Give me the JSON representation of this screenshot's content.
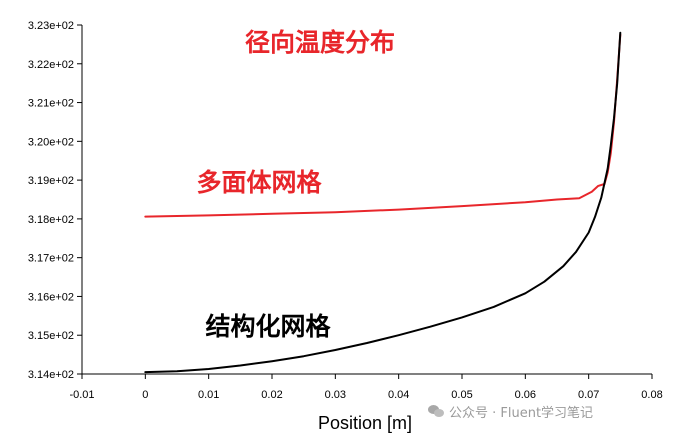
{
  "chart_data": {
    "type": "line",
    "xlabel": "Position [m]",
    "ylabel": "",
    "xlim": [
      -0.01,
      0.08
    ],
    "ylim": [
      314,
      323
    ],
    "x_ticks": [
      "-0.01",
      "0",
      "0.01",
      "0.02",
      "0.03",
      "0.04",
      "0.05",
      "0.06",
      "0.07",
      "0.08"
    ],
    "y_ticks": [
      "3.14e+02",
      "3.15e+02",
      "3.16e+02",
      "3.17e+02",
      "3.18e+02",
      "3.19e+02",
      "3.20e+02",
      "3.21e+02",
      "3.22e+02",
      "3.23e+02"
    ],
    "grid": false,
    "series": [
      {
        "color": "#e8262b",
        "x": [
          0,
          0.01,
          0.02,
          0.03,
          0.04,
          0.05,
          0.06,
          0.065,
          0.0685,
          0.0705,
          0.0715,
          0.0725,
          0.073,
          0.0735,
          0.074,
          0.0745,
          0.075
        ],
        "y": [
          318.06,
          318.09,
          318.13,
          318.17,
          318.24,
          318.33,
          318.43,
          318.5,
          318.53,
          318.7,
          318.85,
          318.9,
          319.2,
          319.7,
          320.5,
          321.6,
          322.75
        ]
      },
      {
        "color": "#000000",
        "x": [
          0,
          0.005,
          0.01,
          0.015,
          0.02,
          0.025,
          0.03,
          0.035,
          0.04,
          0.045,
          0.05,
          0.055,
          0.06,
          0.063,
          0.066,
          0.068,
          0.07,
          0.071,
          0.072,
          0.073,
          0.0735,
          0.074,
          0.0745,
          0.075
        ],
        "y": [
          314.05,
          314.07,
          314.13,
          314.22,
          314.33,
          314.46,
          314.62,
          314.8,
          315.0,
          315.22,
          315.46,
          315.73,
          316.08,
          316.38,
          316.78,
          317.15,
          317.65,
          318.05,
          318.55,
          319.3,
          319.9,
          320.6,
          321.5,
          322.8
        ]
      }
    ],
    "annotations": [
      {
        "text": "径向温度分布",
        "color": "#e8262b"
      },
      {
        "text": "多面体网格",
        "color": "#e8262b"
      },
      {
        "text": "结构化网格",
        "color": "#000000"
      }
    ]
  },
  "watermark": {
    "text": "公众号 · Fluent学习笔记",
    "icon": "wechat-icon"
  }
}
